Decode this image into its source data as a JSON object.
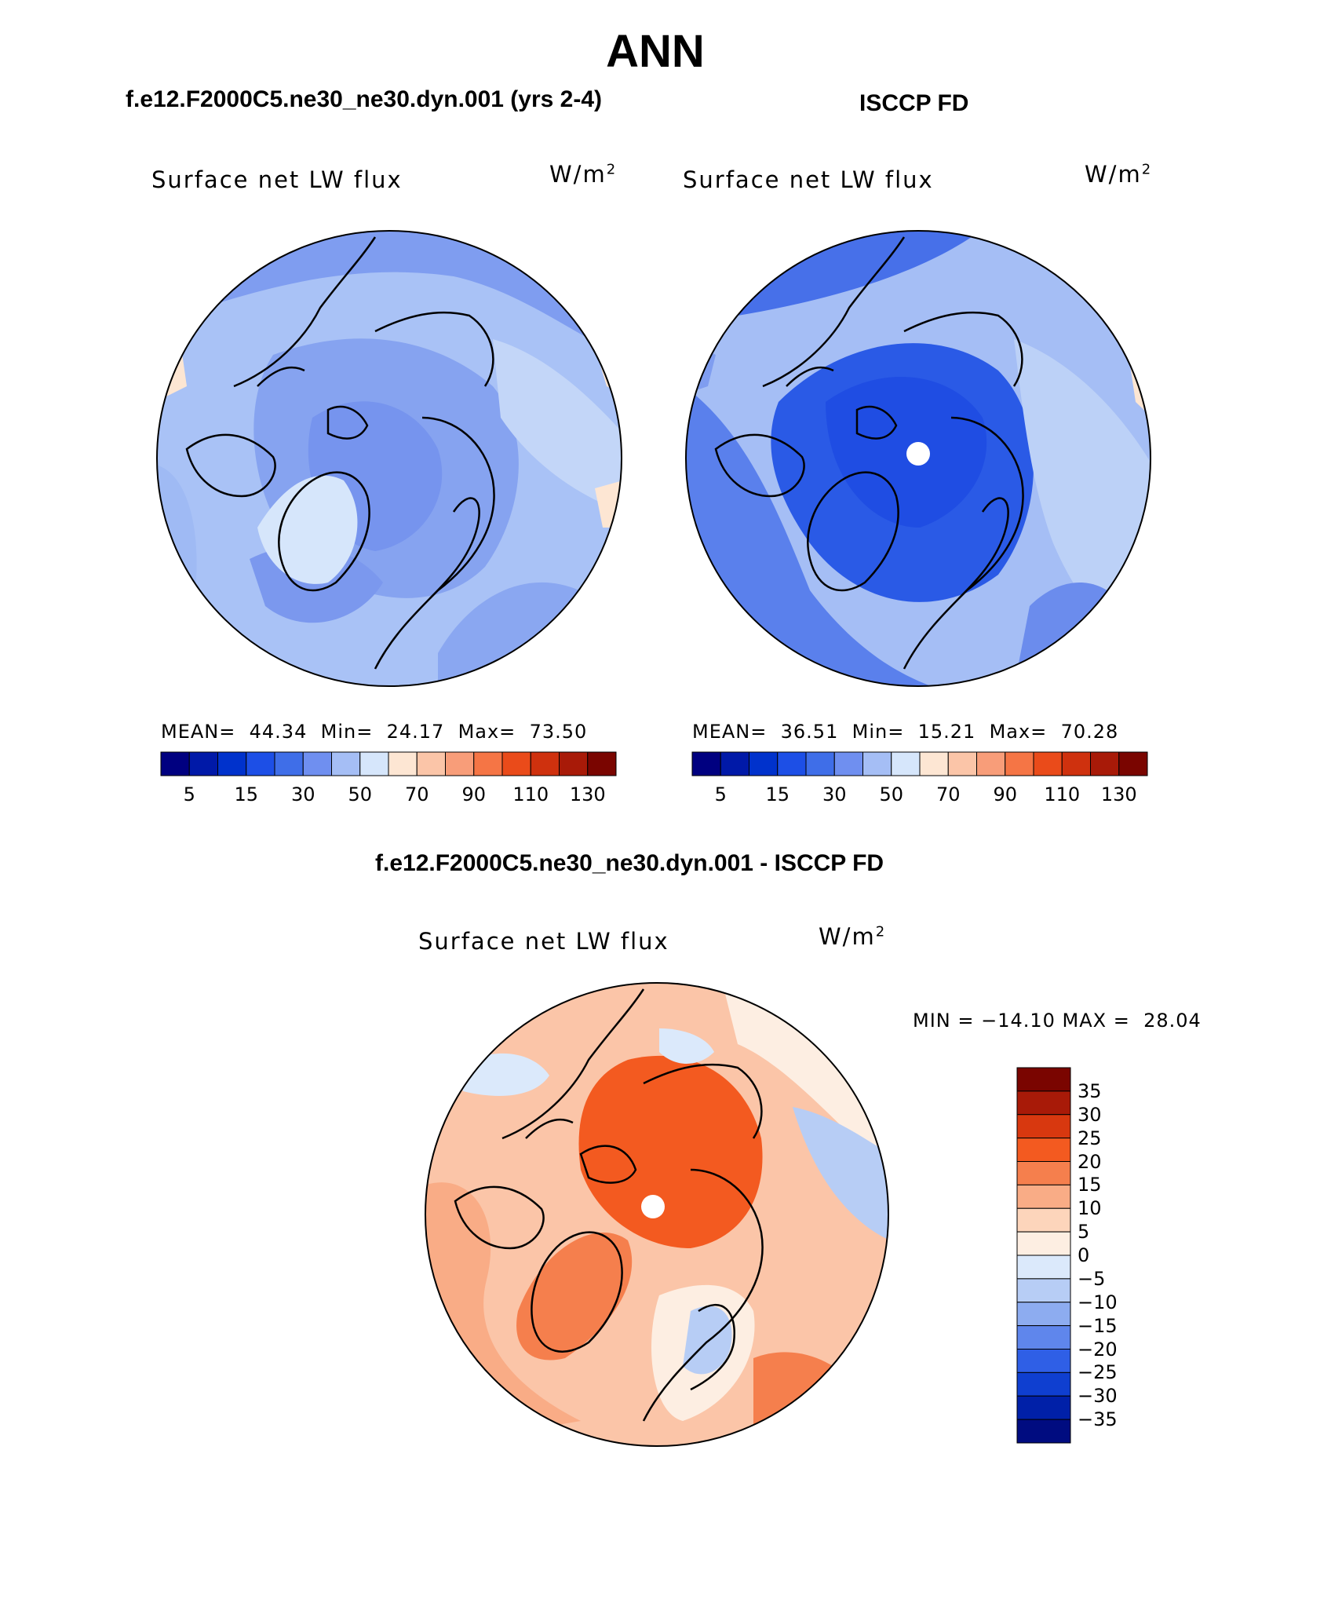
{
  "page_title": "ANN",
  "panels": [
    {
      "case_title": "f.e12.F2000C5.ne30_ne30.dyn.001 (yrs 2-4)",
      "variable": "Surface net LW flux",
      "units": "W/m",
      "units_exp": "2",
      "mean_label": "MEAN=",
      "mean": "44.34",
      "min_label": "Min=",
      "min": "24.17",
      "max_label": "Max=",
      "max": "73.50"
    },
    {
      "case_title": "ISCCP FD",
      "variable": "Surface net LW flux",
      "units": "W/m",
      "units_exp": "2",
      "mean_label": "MEAN=",
      "mean": "36.51",
      "min_label": "Min=",
      "min": "15.21",
      "max_label": "Max=",
      "max": "70.28"
    }
  ],
  "abs_colorbar": {
    "colors": [
      "#000080",
      "#0019a8",
      "#0032cc",
      "#1d4fe6",
      "#3f6ee8",
      "#6f8ff0",
      "#a5bef5",
      "#d6e6fb",
      "#fde6d3",
      "#fbc5a8",
      "#f89d79",
      "#f57545",
      "#ea4b1a",
      "#cf310e",
      "#a81a08",
      "#7a0500"
    ],
    "labels": [
      "5",
      "15",
      "30",
      "50",
      "70",
      "90",
      "110",
      "130"
    ]
  },
  "diff_panel": {
    "case_title": "f.e12.F2000C5.ne30_ne30.dyn.001 - ISCCP FD",
    "variable": "Surface net LW flux",
    "units": "W/m",
    "units_exp": "2",
    "minmax": "MIN = −14.10 MAX =  28.04"
  },
  "diff_colorbar": {
    "colors": [
      "#7a0500",
      "#a81a08",
      "#d8380f",
      "#f35a20",
      "#f57f4d",
      "#f9ac86",
      "#fdd5bb",
      "#fdeee2",
      "#dbe9fb",
      "#b7cdf5",
      "#8dacf0",
      "#5f86ec",
      "#2f5fe6",
      "#0f3fd0",
      "#0020a8",
      "#000c80"
    ],
    "labels": [
      "35",
      "30",
      "25",
      "20",
      "15",
      "10",
      "5",
      "0",
      "−5",
      "−10",
      "−15",
      "−20",
      "−25",
      "−30",
      "−35"
    ]
  }
}
